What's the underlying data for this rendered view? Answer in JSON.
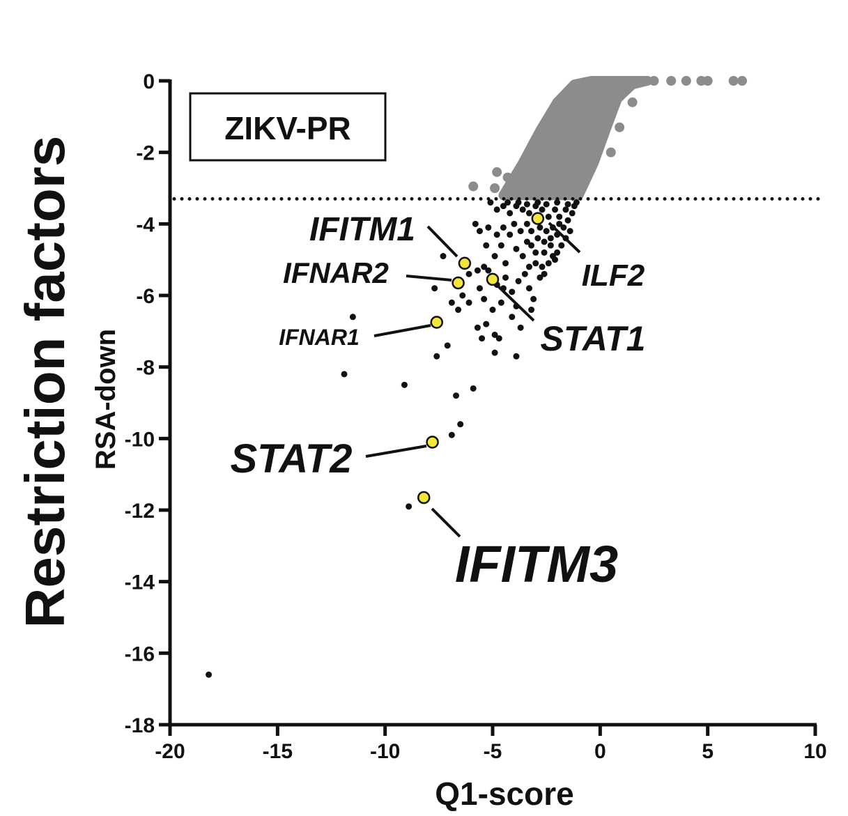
{
  "chart_data": {
    "type": "scatter",
    "title": "Restriction factors",
    "panel_label": "ZIKV-PR",
    "xlabel": "Q1-score",
    "ylabel": "RSA-down",
    "xlim": [
      -20,
      10
    ],
    "ylim": [
      -18,
      0
    ],
    "xticks": [
      -20,
      -15,
      -10,
      -5,
      0,
      5,
      10
    ],
    "yticks": [
      0,
      -2,
      -4,
      -6,
      -8,
      -10,
      -12,
      -14,
      -16,
      -18
    ],
    "threshold_y": -3.3,
    "grid": false,
    "colors": {
      "background_hits": "#8c8c8c",
      "significant_hits": "#111111",
      "highlight": "#f2e63a",
      "axis": "#111111"
    },
    "highlighted": [
      {
        "gene": "IFITM3",
        "x": -8.2,
        "y": -11.65
      },
      {
        "gene": "STAT2",
        "x": -7.8,
        "y": -10.1
      },
      {
        "gene": "IFNAR1",
        "x": -7.6,
        "y": -6.75
      },
      {
        "gene": "IFNAR2",
        "x": -6.6,
        "y": -5.65
      },
      {
        "gene": "IFITM1",
        "x": -6.3,
        "y": -5.1
      },
      {
        "gene": "STAT1",
        "x": -5.0,
        "y": -5.55
      },
      {
        "gene": "ILF2",
        "x": -2.9,
        "y": -3.85
      }
    ],
    "significant_points": [
      [
        -18.2,
        -16.6
      ],
      [
        -11.9,
        -8.2
      ],
      [
        -11.5,
        -6.6
      ],
      [
        -9.1,
        -8.5
      ],
      [
        -8.9,
        -11.9
      ],
      [
        -7.6,
        -7.7
      ],
      [
        -7.1,
        -7.4
      ],
      [
        -6.9,
        -9.9
      ],
      [
        -6.7,
        -8.8
      ],
      [
        -6.5,
        -9.6
      ],
      [
        -5.9,
        -8.6
      ],
      [
        -7.7,
        -5.8
      ],
      [
        -6.6,
        -6.4
      ],
      [
        -6.1,
        -6.2
      ],
      [
        -5.7,
        -6.9
      ],
      [
        -5.5,
        -7.2
      ],
      [
        -5.3,
        -6.8
      ],
      [
        -4.9,
        -7.1
      ],
      [
        -4.7,
        -7.2
      ],
      [
        -4.9,
        -7.6
      ],
      [
        -3.9,
        -7.7
      ],
      [
        -4.1,
        -6.6
      ],
      [
        -3.7,
        -6.9
      ],
      [
        -3.2,
        -6.4
      ],
      [
        -3.1,
        -6.1
      ],
      [
        -5.4,
        -5.2
      ],
      [
        -5.2,
        -5.3
      ],
      [
        -5.6,
        -5.8
      ],
      [
        -4.8,
        -5.7
      ],
      [
        -4.5,
        -5.8
      ],
      [
        -4.1,
        -5.9
      ],
      [
        -3.8,
        -5.6
      ],
      [
        -3.5,
        -5.4
      ],
      [
        -3.3,
        -5.2
      ],
      [
        -3.0,
        -5.1
      ],
      [
        -2.7,
        -5.2
      ],
      [
        -2.6,
        -5.4
      ],
      [
        -2.4,
        -5.1
      ],
      [
        -2.2,
        -4.9
      ],
      [
        -2.0,
        -4.8
      ],
      [
        -1.8,
        -4.6
      ],
      [
        -2.3,
        -4.6
      ],
      [
        -2.6,
        -4.5
      ],
      [
        -2.9,
        -4.4
      ],
      [
        -3.2,
        -4.6
      ],
      [
        -3.6,
        -4.9
      ],
      [
        -3.9,
        -4.7
      ],
      [
        -4.4,
        -5.1
      ],
      [
        -4.6,
        -4.6
      ],
      [
        -4.9,
        -4.9
      ],
      [
        -5.3,
        -4.6
      ],
      [
        -5.6,
        -4.2
      ],
      [
        -5.8,
        -4.0
      ],
      [
        -5.2,
        -4.1
      ],
      [
        -4.8,
        -4.3
      ],
      [
        -4.5,
        -4.1
      ],
      [
        -4.2,
        -4.3
      ],
      [
        -4.0,
        -4.0
      ],
      [
        -3.7,
        -4.2
      ],
      [
        -3.4,
        -4.0
      ],
      [
        -3.2,
        -4.2
      ],
      [
        -2.8,
        -4.1
      ],
      [
        -2.5,
        -4.2
      ],
      [
        -2.2,
        -4.1
      ],
      [
        -2.0,
        -4.3
      ],
      [
        -1.7,
        -4.1
      ],
      [
        -1.5,
        -3.9
      ],
      [
        -1.3,
        -3.7
      ],
      [
        -1.2,
        -3.5
      ],
      [
        -1.1,
        -3.4
      ],
      [
        -1.6,
        -3.6
      ],
      [
        -1.9,
        -3.8
      ],
      [
        -2.1,
        -3.6
      ],
      [
        -2.4,
        -3.8
      ],
      [
        -2.7,
        -3.6
      ],
      [
        -3.0,
        -3.5
      ],
      [
        -3.3,
        -3.7
      ],
      [
        -3.6,
        -3.6
      ],
      [
        -3.9,
        -3.5
      ],
      [
        -4.2,
        -3.7
      ],
      [
        -4.5,
        -3.5
      ],
      [
        -4.8,
        -3.6
      ],
      [
        -5.1,
        -3.4
      ],
      [
        -4.3,
        -3.4
      ],
      [
        -3.8,
        -3.4
      ],
      [
        -3.4,
        -3.45
      ],
      [
        -2.9,
        -3.4
      ],
      [
        -2.5,
        -3.45
      ],
      [
        -2.0,
        -3.4
      ],
      [
        -1.5,
        -3.45
      ],
      [
        -2.3,
        -4.4
      ],
      [
        -1.9,
        -4.0
      ],
      [
        -2.6,
        -4.8
      ],
      [
        -3.0,
        -4.8
      ],
      [
        -3.4,
        -4.5
      ],
      [
        -2.1,
        -5.0
      ],
      [
        -1.6,
        -4.4
      ],
      [
        -1.4,
        -4.2
      ],
      [
        -2.8,
        -5.5
      ],
      [
        -3.3,
        -5.8
      ],
      [
        -5.7,
        -5.3
      ],
      [
        -6.1,
        -5.4
      ],
      [
        -4.4,
        -5.5
      ],
      [
        -3.9,
        -6.3
      ],
      [
        -4.6,
        -6.2
      ],
      [
        -5.0,
        -6.4
      ],
      [
        -5.4,
        -6.1
      ],
      [
        -6.4,
        -6.0
      ],
      [
        -6.9,
        -6.2
      ],
      [
        -7.3,
        -4.9
      ]
    ],
    "background_points": [
      [
        -5.9,
        -2.95
      ],
      [
        -4.8,
        -2.55
      ],
      [
        -4.9,
        -3.0
      ],
      [
        -4.3,
        -2.7
      ],
      [
        1.5,
        -0.6
      ],
      [
        0.5,
        -2.0
      ],
      [
        0.9,
        -1.3
      ],
      [
        6.2,
        0.0
      ],
      [
        6.6,
        0.0
      ],
      [
        2.5,
        0.0
      ],
      [
        3.3,
        0.0
      ],
      [
        4.0,
        0.0
      ],
      [
        4.7,
        0.0
      ],
      [
        5.0,
        0.0
      ],
      [
        1.2,
        -0.2
      ],
      [
        -0.2,
        -1.6
      ],
      [
        -0.5,
        -2.3
      ],
      [
        -1.0,
        -2.8
      ],
      [
        -1.5,
        -3.1
      ],
      [
        -2.0,
        -3.1
      ],
      [
        -3.8,
        -2.9
      ],
      [
        -3.2,
        -2.4
      ],
      [
        -2.6,
        -1.9
      ],
      [
        -2.0,
        -1.4
      ],
      [
        -1.4,
        -0.9
      ],
      [
        -0.8,
        -0.4
      ],
      [
        -0.2,
        -0.1
      ],
      [
        0.2,
        -0.7
      ],
      [
        0.6,
        -0.3
      ],
      [
        -1.2,
        -2.0
      ]
    ],
    "background_band": {
      "left_edge": [
        [
          -4.5,
          -3.2
        ],
        [
          -3.6,
          -2.3
        ],
        [
          -2.8,
          -1.4
        ],
        [
          -2.0,
          -0.6
        ],
        [
          -1.2,
          -0.1
        ],
        [
          -0.4,
          0.0
        ]
      ],
      "right_edge": [
        [
          -1.0,
          -3.2
        ],
        [
          -0.3,
          -2.3
        ],
        [
          0.3,
          -1.3
        ],
        [
          0.8,
          -0.5
        ],
        [
          1.5,
          -0.1
        ],
        [
          2.2,
          0.0
        ]
      ]
    }
  }
}
